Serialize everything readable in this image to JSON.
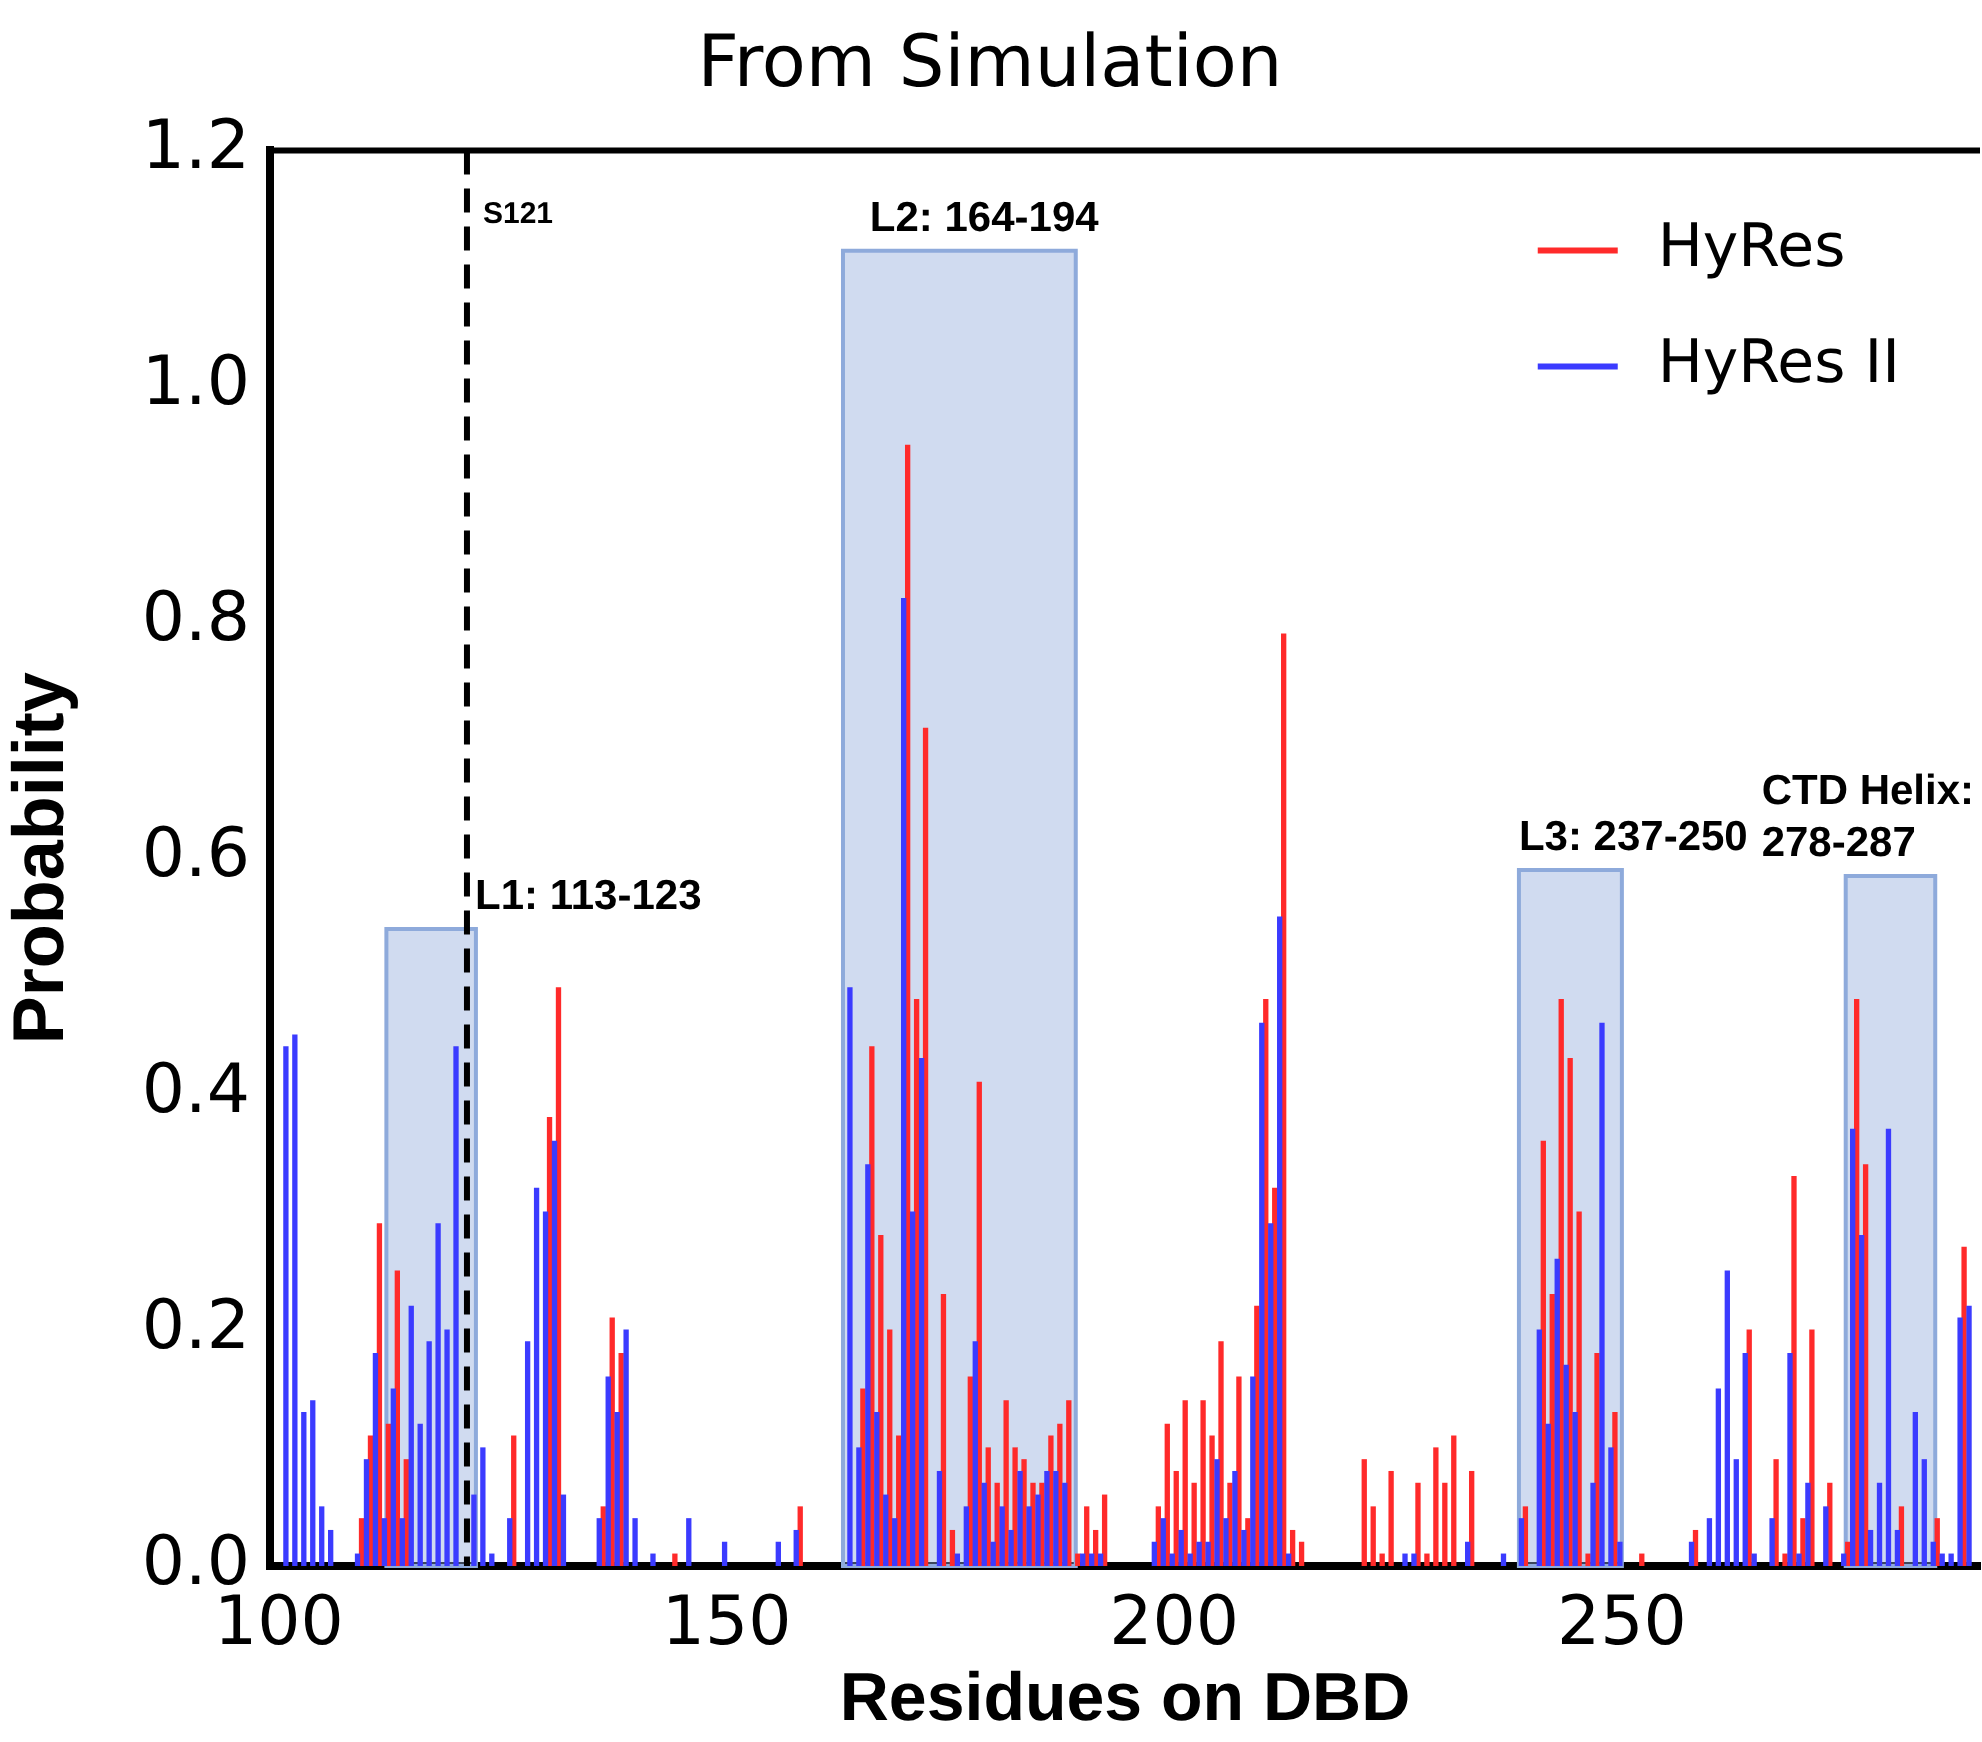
{
  "chart_data": {
    "type": "bar",
    "title": "From Simulation",
    "xlabel": "Residues on DBD",
    "ylabel": "Probability",
    "x": [
      101,
      102,
      103,
      104,
      105,
      106,
      109,
      110,
      111,
      112,
      113,
      114,
      115,
      116,
      117,
      118,
      119,
      120,
      122,
      123,
      124,
      126,
      128,
      129,
      130,
      131,
      132,
      136,
      137,
      138,
      139,
      140,
      142,
      144,
      146,
      150,
      156,
      158,
      164,
      165,
      166,
      167,
      168,
      169,
      170,
      171,
      172,
      174,
      175,
      176,
      177,
      178,
      179,
      180,
      181,
      182,
      183,
      184,
      185,
      186,
      187,
      188,
      189,
      190,
      191,
      192,
      198,
      199,
      200,
      201,
      202,
      203,
      204,
      205,
      206,
      207,
      208,
      209,
      210,
      211,
      212,
      213,
      214,
      221,
      222,
      223,
      224,
      226,
      227,
      228,
      229,
      230,
      231,
      233,
      237,
      239,
      241,
      242,
      243,
      244,
      245,
      246,
      247,
      248,
      249,
      250,
      252,
      258,
      260,
      261,
      262,
      263,
      264,
      265,
      267,
      268,
      269,
      270,
      271,
      273,
      275,
      276,
      277,
      278,
      279,
      280,
      281,
      283,
      284,
      285,
      286,
      287,
      288,
      289
    ],
    "series": [
      {
        "name": "HyRes",
        "color": "#ff2a2a",
        "values": [
          null,
          null,
          null,
          null,
          null,
          null,
          0.04,
          0.11,
          0.29,
          0.12,
          0.25,
          0.09,
          null,
          null,
          null,
          null,
          null,
          null,
          null,
          null,
          null,
          0.11,
          null,
          null,
          0.38,
          0.49,
          null,
          0.05,
          0.21,
          0.18,
          null,
          null,
          null,
          0.01,
          null,
          null,
          null,
          0.05,
          null,
          0.15,
          0.44,
          0.28,
          0.2,
          0.11,
          0.95,
          0.48,
          0.71,
          0.23,
          0.03,
          null,
          0.16,
          0.41,
          0.1,
          0.07,
          0.14,
          0.1,
          0.09,
          0.07,
          0.07,
          0.11,
          0.12,
          0.14,
          0.01,
          0.05,
          0.03,
          0.06,
          0.05,
          0.12,
          0.08,
          0.14,
          0.07,
          0.14,
          0.11,
          0.19,
          0.07,
          0.16,
          0.04,
          0.22,
          0.48,
          0.32,
          0.79,
          0.03,
          0.02,
          0.09,
          0.05,
          0.01,
          0.08,
          null,
          0.07,
          0.01,
          0.1,
          0.07,
          0.11,
          0.08,
          null,
          0.05,
          0.36,
          0.23,
          0.48,
          0.43,
          0.3,
          0.01,
          0.18,
          null,
          0.13,
          null,
          0.01,
          0.03,
          null,
          null,
          null,
          null,
          0.2,
          null,
          0.09,
          0.01,
          0.33,
          0.04,
          0.2,
          0.07,
          0.02,
          0.48,
          0.34,
          null,
          null,
          null,
          0.05,
          null,
          null,
          0.04,
          null,
          null,
          0.27,
          null
        ]
      },
      {
        "name": "HyRes II",
        "color": "#3b3bff",
        "values": [
          0.44,
          0.45,
          0.13,
          0.14,
          0.05,
          0.03,
          0.01,
          0.09,
          0.18,
          0.04,
          0.15,
          0.04,
          0.22,
          0.12,
          0.19,
          0.29,
          0.2,
          0.44,
          0.06,
          0.1,
          0.01,
          0.04,
          0.19,
          0.32,
          0.3,
          0.36,
          0.06,
          0.04,
          0.16,
          0.13,
          0.2,
          0.04,
          0.01,
          null,
          0.04,
          0.02,
          0.02,
          0.03,
          0.49,
          0.1,
          0.34,
          0.13,
          0.06,
          0.04,
          0.82,
          0.3,
          0.43,
          0.08,
          null,
          0.01,
          0.05,
          0.19,
          0.07,
          0.02,
          0.05,
          0.03,
          0.08,
          0.05,
          0.06,
          0.08,
          0.08,
          0.07,
          null,
          0.01,
          0.01,
          0.01,
          0.02,
          0.04,
          0.01,
          0.03,
          0.01,
          0.02,
          0.02,
          0.09,
          0.04,
          0.08,
          0.03,
          0.16,
          0.46,
          0.29,
          0.55,
          0.01,
          null,
          null,
          null,
          null,
          null,
          0.01,
          0.01,
          null,
          null,
          null,
          null,
          0.02,
          0.01,
          0.04,
          0.2,
          0.12,
          0.26,
          0.17,
          0.13,
          null,
          0.07,
          0.46,
          0.1,
          0.02,
          null,
          0.02,
          0.04,
          0.15,
          0.25,
          0.09,
          0.18,
          0.01,
          0.04,
          null,
          0.18,
          0.01,
          0.07,
          0.05,
          0.01,
          0.37,
          0.28,
          0.03,
          0.07,
          0.37,
          0.03,
          0.13,
          0.09,
          0.02,
          0.01,
          0.01,
          0.21,
          0.22
        ]
      }
    ],
    "xlim": [
      99,
      290
    ],
    "xticks": [
      100,
      150,
      200,
      250
    ],
    "ylim": [
      0,
      1.2
    ],
    "yticks": [
      {
        "value": 0,
        "label": "0.0"
      },
      {
        "value": 0.2,
        "label": "0.2"
      },
      {
        "value": 0.4,
        "label": "0.4"
      },
      {
        "value": 0.6,
        "label": "0.6"
      },
      {
        "value": 0.8,
        "label": "0.8"
      },
      {
        "value": 1,
        "label": "1.0"
      },
      {
        "value": 1.2,
        "label": "1.2"
      }
    ],
    "grid": false,
    "legend": "top right",
    "ref_lines": [
      {
        "axis": "x",
        "value": 121,
        "label": "S121",
        "color": "#000000",
        "line_style": "dashed"
      }
    ],
    "bands": [
      {
        "axis": "x",
        "from": 112,
        "to": 122,
        "color": "#8eaadb"
      },
      {
        "axis": "x",
        "from": 163,
        "to": 189,
        "color": "#8eaadb"
      },
      {
        "axis": "x",
        "from": 238.5,
        "to": 250,
        "color": "#8eaadb"
      },
      {
        "axis": "x",
        "from": 275,
        "to": 285,
        "color": "#8eaadb"
      }
    ],
    "annotations": [
      {
        "text": "L1: 113-123",
        "x": 121.9,
        "y": 0.54
      },
      {
        "text": "L2: 164-194",
        "x": 166,
        "y": 1.115
      },
      {
        "text": "L3: 237-250",
        "x": 238.5,
        "y": 0.59
      },
      {
        "text": "CTD Helix:\n278-287",
        "x": 275,
        "y": 0.585
      }
    ]
  }
}
